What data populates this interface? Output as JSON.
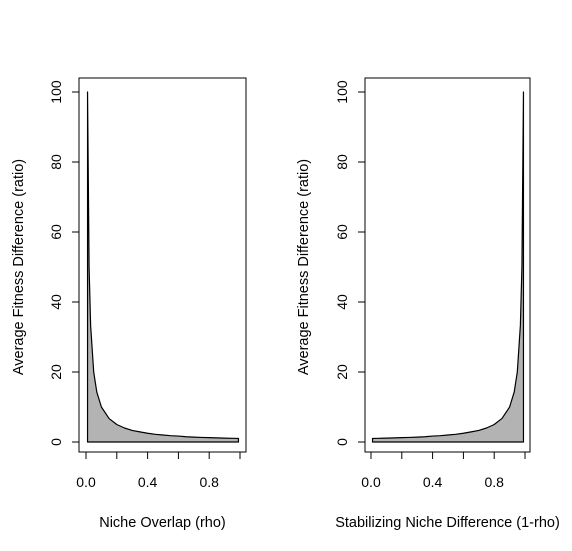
{
  "chart_data": [
    {
      "type": "area",
      "title": "",
      "xlabel": "Niche Overlap (rho)",
      "ylabel": "Average Fitness Difference (ratio)",
      "xlim": [
        0,
        1
      ],
      "ylim": [
        0,
        100
      ],
      "xticks": [
        "0.0",
        "0.4",
        "0.8"
      ],
      "yticks": [
        "0",
        "20",
        "40",
        "60",
        "80",
        "100"
      ],
      "fill_color": "#b3b3b3",
      "line_color": "#000000",
      "grid": false,
      "legend": "none",
      "series": [
        {
          "x": [
            0.01,
            0.02,
            0.03,
            0.05,
            0.07,
            0.1,
            0.15,
            0.2,
            0.25,
            0.3,
            0.35,
            0.4,
            0.45,
            0.5,
            0.55,
            0.6,
            0.65,
            0.7,
            0.75,
            0.8,
            0.85,
            0.9,
            0.95,
            0.99
          ],
          "y": [
            100,
            50,
            33.3,
            20,
            14.3,
            10,
            6.7,
            5,
            4,
            3.3,
            2.9,
            2.5,
            2.2,
            2,
            1.8,
            1.7,
            1.5,
            1.4,
            1.3,
            1.25,
            1.18,
            1.11,
            1.05,
            1.01
          ]
        }
      ]
    },
    {
      "type": "area",
      "title": "",
      "xlabel": "Stabilizing Niche Difference (1-rho)",
      "ylabel": "Average Fitness Difference (ratio)",
      "xlim": [
        0,
        1
      ],
      "ylim": [
        0,
        100
      ],
      "xticks": [
        "0.0",
        "0.4",
        "0.8"
      ],
      "yticks": [
        "0",
        "20",
        "40",
        "60",
        "80",
        "100"
      ],
      "fill_color": "#b3b3b3",
      "line_color": "#000000",
      "grid": false,
      "legend": "none",
      "series": [
        {
          "x": [
            0.01,
            0.05,
            0.1,
            0.15,
            0.2,
            0.25,
            0.3,
            0.35,
            0.4,
            0.45,
            0.5,
            0.55,
            0.6,
            0.65,
            0.7,
            0.75,
            0.8,
            0.85,
            0.9,
            0.93,
            0.95,
            0.97,
            0.98,
            0.99
          ],
          "y": [
            1.01,
            1.05,
            1.11,
            1.18,
            1.25,
            1.3,
            1.4,
            1.5,
            1.7,
            1.8,
            2,
            2.2,
            2.5,
            2.9,
            3.3,
            4,
            5,
            6.7,
            10,
            14.3,
            20,
            33.3,
            50,
            100
          ]
        }
      ]
    }
  ]
}
